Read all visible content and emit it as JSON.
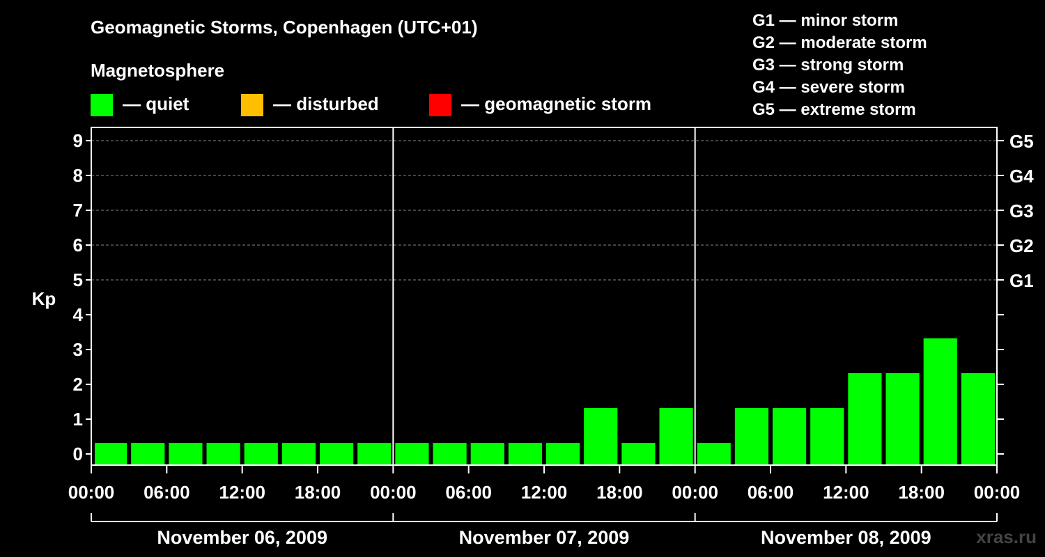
{
  "header": {
    "title": "Geomagnetic Storms, Copenhagen (UTC+01)",
    "subtitle": "Magnetosphere"
  },
  "legend": [
    {
      "label": "— quiet",
      "color": "#00ff00"
    },
    {
      "label": "— disturbed",
      "color": "#ffbf00"
    },
    {
      "label": "— geomagnetic storm",
      "color": "#ff0000"
    }
  ],
  "storm_scale": [
    "G1 — minor storm",
    "G2 — moderate storm",
    "G3 — strong storm",
    "G4 — severe storm",
    "G5 — extreme storm"
  ],
  "watermark": "xras.ru",
  "colors": {
    "quiet": "#00ff00",
    "disturbed": "#ffbf00",
    "storm": "#ff0000",
    "grid": "#888888",
    "axis": "#ffffff"
  },
  "chart_data": {
    "type": "bar",
    "title": "Geomagnetic Storms, Copenhagen (UTC+01)",
    "ylabel": "Kp",
    "ylim": [
      0,
      9
    ],
    "yticks": [
      0,
      1,
      2,
      3,
      4,
      5,
      6,
      7,
      8,
      9
    ],
    "right_axis": [
      {
        "kp": 5,
        "label": "G1"
      },
      {
        "kp": 6,
        "label": "G2"
      },
      {
        "kp": 7,
        "label": "G3"
      },
      {
        "kp": 8,
        "label": "G4"
      },
      {
        "kp": 9,
        "label": "G5"
      }
    ],
    "xlim_hours": [
      0,
      72
    ],
    "xticks": [
      {
        "hour": 0,
        "label": "00:00"
      },
      {
        "hour": 6,
        "label": "06:00"
      },
      {
        "hour": 12,
        "label": "12:00"
      },
      {
        "hour": 18,
        "label": "18:00"
      },
      {
        "hour": 24,
        "label": "00:00"
      },
      {
        "hour": 30,
        "label": "06:00"
      },
      {
        "hour": 36,
        "label": "12:00"
      },
      {
        "hour": 42,
        "label": "18:00"
      },
      {
        "hour": 48,
        "label": "00:00"
      },
      {
        "hour": 54,
        "label": "06:00"
      },
      {
        "hour": 60,
        "label": "12:00"
      },
      {
        "hour": 66,
        "label": "18:00"
      },
      {
        "hour": 72,
        "label": "00:00"
      }
    ],
    "days": [
      {
        "label": "November 06, 2009",
        "start": 0,
        "end": 24
      },
      {
        "label": "November 07, 2009",
        "start": 24,
        "end": 48
      },
      {
        "label": "November 08, 2009",
        "start": 48,
        "end": 72
      }
    ],
    "interval_hours": 3,
    "values": [
      0,
      0,
      0,
      0,
      0,
      0,
      0,
      0,
      0,
      0,
      0,
      0,
      0,
      1,
      0,
      1,
      0,
      1,
      1,
      1,
      2,
      2,
      3,
      2
    ],
    "grid": true
  }
}
